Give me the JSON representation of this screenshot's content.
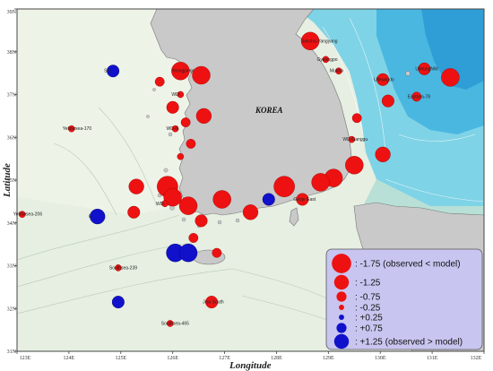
{
  "map": {
    "country_label": "KOREA",
    "x_axis_label": "Longitude",
    "y_axis_label": "Latitude",
    "lon_ticks": [
      "123E",
      "124E",
      "125E",
      "126E",
      "127E",
      "128E",
      "129E",
      "130E",
      "131E",
      "132E"
    ],
    "lat_ticks": [
      "39N",
      "38N",
      "37N",
      "36N",
      "35N",
      "34N",
      "33N",
      "32N",
      "31N"
    ],
    "colors": {
      "land": "#c9c9c9",
      "shelf_sea": "#e6efe2",
      "deep_sea": "#7fd3e6",
      "deepest_sea": "#4ab7e0",
      "negative": "#ee1111",
      "positive": "#1111cc",
      "legend_bg": "#c8c6f0"
    },
    "stations": [
      {
        "name": "Sokcho-Yangyang",
        "lon": 128.65,
        "lat": 38.25,
        "sign": "neg",
        "level": 1.25
      },
      {
        "name": "Gyeongpo",
        "lon": 128.95,
        "lat": 37.82,
        "sign": "neg",
        "level": 0.25
      },
      {
        "name": "Mukho",
        "lon": 129.2,
        "lat": 37.55,
        "sign": "neg",
        "level": 0.25
      },
      {
        "name": "Ulleungdo",
        "lon": 130.05,
        "lat": 37.35,
        "sign": "neg",
        "level": 0.75
      },
      {
        "name": "UlleungNW",
        "lon": 130.85,
        "lat": 37.6,
        "sign": "neg",
        "level": 0.75
      },
      {
        "name": "",
        "lon": 131.35,
        "lat": 37.4,
        "sign": "neg",
        "level": 1.25
      },
      {
        "name": "",
        "lon": 130.15,
        "lat": 36.85,
        "sign": "neg",
        "level": 0.75
      },
      {
        "name": "Eastsea-78",
        "lon": 130.7,
        "lat": 36.95,
        "sign": "neg",
        "level": 0.5
      },
      {
        "name": "",
        "lon": 129.55,
        "lat": 36.45,
        "sign": "neg",
        "level": 0.5
      },
      {
        "name": "WD-Ganggu",
        "lon": 129.45,
        "lat": 35.95,
        "sign": "neg",
        "level": 0.25
      },
      {
        "name": "",
        "lon": 130.05,
        "lat": 35.6,
        "sign": "neg",
        "level": 1.0
      },
      {
        "name": "",
        "lon": 129.5,
        "lat": 35.35,
        "sign": "neg",
        "level": 1.25
      },
      {
        "name": "",
        "lon": 129.1,
        "lat": 35.05,
        "sign": "neg",
        "level": 1.25
      },
      {
        "name": "",
        "lon": 128.85,
        "lat": 34.95,
        "sign": "neg",
        "level": 1.25
      },
      {
        "name": "",
        "lon": 128.15,
        "lat": 34.85,
        "sign": "neg",
        "level": 1.5
      },
      {
        "name": "Geoje East",
        "lon": 128.5,
        "lat": 34.55,
        "sign": "neg",
        "level": 0.75
      },
      {
        "name": "",
        "lon": 127.85,
        "lat": 34.55,
        "sign": "pos",
        "level": 0.75
      },
      {
        "name": "",
        "lon": 127.5,
        "lat": 34.25,
        "sign": "neg",
        "level": 1.0
      },
      {
        "name": "",
        "lon": 126.95,
        "lat": 34.55,
        "sign": "neg",
        "level": 1.25
      },
      {
        "name": "Seo",
        "lon": 124.85,
        "lat": 37.55,
        "sign": "pos",
        "level": 0.75
      },
      {
        "name": "Yeongjongdo",
        "lon": 126.15,
        "lat": 37.55,
        "sign": "neg",
        "level": 1.25
      },
      {
        "name": "",
        "lon": 126.55,
        "lat": 37.45,
        "sign": "neg",
        "level": 1.25
      },
      {
        "name": "",
        "lon": 125.75,
        "lat": 37.3,
        "sign": "neg",
        "level": 0.5
      },
      {
        "name": "WD-",
        "lon": 126.15,
        "lat": 37.0,
        "sign": "neg",
        "level": 0.25
      },
      {
        "name": "",
        "lon": 126.0,
        "lat": 36.7,
        "sign": "neg",
        "level": 0.75
      },
      {
        "name": "",
        "lon": 126.6,
        "lat": 36.5,
        "sign": "neg",
        "level": 1.0
      },
      {
        "name": "",
        "lon": 126.25,
        "lat": 36.35,
        "sign": "neg",
        "level": 0.5
      },
      {
        "name": "WD-G",
        "lon": 126.05,
        "lat": 36.2,
        "sign": "neg",
        "level": 0.25
      },
      {
        "name": "",
        "lon": 126.35,
        "lat": 35.85,
        "sign": "neg",
        "level": 0.5
      },
      {
        "name": "",
        "lon": 126.15,
        "lat": 35.55,
        "sign": "neg",
        "level": 0.25
      },
      {
        "name": "",
        "lon": 125.3,
        "lat": 34.85,
        "sign": "neg",
        "level": 1.0
      },
      {
        "name": "",
        "lon": 125.9,
        "lat": 34.85,
        "sign": "neg",
        "level": 1.5
      },
      {
        "name": "",
        "lon": 126.0,
        "lat": 34.6,
        "sign": "neg",
        "level": 1.25
      },
      {
        "name": "WD-",
        "lon": 125.85,
        "lat": 34.45,
        "sign": "neg",
        "level": 0.25
      },
      {
        "name": "",
        "lon": 126.3,
        "lat": 34.4,
        "sign": "neg",
        "level": 1.25
      },
      {
        "name": "",
        "lon": 125.25,
        "lat": 34.25,
        "sign": "neg",
        "level": 0.75
      },
      {
        "name": "",
        "lon": 126.55,
        "lat": 34.05,
        "sign": "neg",
        "level": 0.75
      },
      {
        "name": "",
        "lon": 126.4,
        "lat": 33.65,
        "sign": "neg",
        "level": 0.5
      },
      {
        "name": "",
        "lon": 126.85,
        "lat": 33.3,
        "sign": "neg",
        "level": 0.5
      },
      {
        "name": "G",
        "lon": 124.55,
        "lat": 34.15,
        "sign": "pos",
        "level": 1.0
      },
      {
        "name": "",
        "lon": 126.05,
        "lat": 33.3,
        "sign": "pos",
        "level": 1.25
      },
      {
        "name": "",
        "lon": 126.3,
        "lat": 33.3,
        "sign": "pos",
        "level": 1.25
      },
      {
        "name": "Yellowsea-170",
        "lon": 124.05,
        "lat": 36.2,
        "sign": "neg",
        "level": 0.25
      },
      {
        "name": "Yellowsea-206",
        "lon": 123.1,
        "lat": 34.2,
        "sign": "neg",
        "level": 0.25
      },
      {
        "name": "Southsea-239",
        "lon": 124.95,
        "lat": 32.95,
        "sign": "neg",
        "level": 0.25
      },
      {
        "name": "",
        "lon": 124.95,
        "lat": 32.15,
        "sign": "pos",
        "level": 0.75
      },
      {
        "name": "Jeju South",
        "lon": 126.75,
        "lat": 32.15,
        "sign": "neg",
        "level": 0.75
      },
      {
        "name": "Southsea-465",
        "lon": 125.95,
        "lat": 31.65,
        "sign": "neg",
        "level": 0.25
      }
    ],
    "legend": {
      "items": [
        {
          "label": ": -1.75 (observed < model)",
          "sign": "neg",
          "level": 1.75
        },
        {
          "label": ": -1.25",
          "sign": "neg",
          "level": 1.25
        },
        {
          "label": ": -0.75",
          "sign": "neg",
          "level": 0.75
        },
        {
          "label": ": -0.25",
          "sign": "neg",
          "level": 0.25
        },
        {
          "label": ": +0.25",
          "sign": "pos",
          "level": 0.25
        },
        {
          "label": ": +0.75",
          "sign": "pos",
          "level": 0.75
        },
        {
          "label": ": +1.25 (observed > model)",
          "sign": "pos",
          "level": 1.25
        }
      ]
    }
  }
}
